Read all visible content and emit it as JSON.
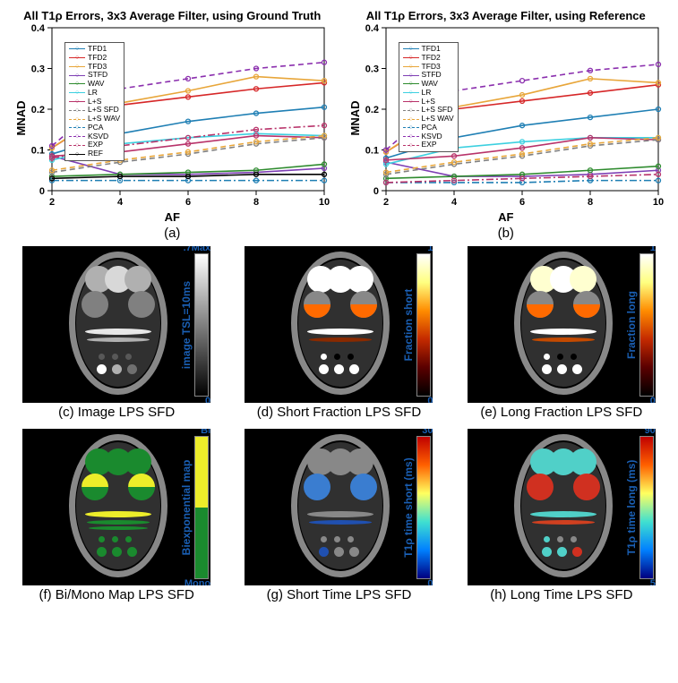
{
  "chart_a": {
    "title": "All T1ρ Errors, 3x3 Average Filter, using Ground Truth",
    "caption": "(a)",
    "xlabel": "AF",
    "ylabel": "MNAD",
    "xlim": [
      2,
      10
    ],
    "ylim": [
      0,
      0.4
    ],
    "xticks": [
      2,
      4,
      6,
      8,
      10
    ],
    "yticks": [
      0,
      0.1,
      0.2,
      0.3,
      0.4
    ],
    "title_fontsize": 13,
    "label_fontsize": 13,
    "tick_fontsize": 10,
    "background_color": "#ffffff",
    "grid": false,
    "series": [
      {
        "name": "TFD1",
        "color": "#1f7fb4",
        "style": "solid",
        "marker": "o",
        "y": [
          0.09,
          0.14,
          0.17,
          0.19,
          0.205
        ]
      },
      {
        "name": "TFD2",
        "color": "#d62728",
        "style": "solid",
        "marker": "o",
        "y": [
          0.105,
          0.21,
          0.23,
          0.25,
          0.265
        ]
      },
      {
        "name": "TFD3",
        "color": "#e8a63a",
        "style": "solid",
        "marker": "o",
        "y": [
          0.105,
          0.215,
          0.245,
          0.28,
          0.27
        ]
      },
      {
        "name": "STFD",
        "color": "#7e3fb4",
        "style": "solid",
        "marker": "o",
        "y": [
          0.085,
          0.04,
          0.04,
          0.045,
          0.055
        ]
      },
      {
        "name": "WAV",
        "color": "#2e8b2e",
        "style": "solid",
        "marker": "o",
        "y": [
          0.035,
          0.04,
          0.045,
          0.05,
          0.065
        ]
      },
      {
        "name": "LR",
        "color": "#3dd0e0",
        "style": "solid",
        "marker": "o",
        "y": [
          0.075,
          0.115,
          0.13,
          0.14,
          0.135
        ]
      },
      {
        "name": "L+S",
        "color": "#b8336a",
        "style": "solid",
        "marker": "o",
        "y": [
          0.085,
          0.095,
          0.115,
          0.135,
          0.13
        ]
      },
      {
        "name": "L+S SFD",
        "color": "#808080",
        "style": "dashed",
        "marker": "o",
        "y": [
          0.045,
          0.07,
          0.09,
          0.115,
          0.13
        ]
      },
      {
        "name": "L+S WAV",
        "color": "#e8a63a",
        "style": "dashed",
        "marker": "o",
        "y": [
          0.05,
          0.075,
          0.095,
          0.12,
          0.135
        ]
      },
      {
        "name": "PCA",
        "color": "#1f7fb4",
        "style": "dashdot",
        "marker": "o",
        "y": [
          0.025,
          0.025,
          0.025,
          0.025,
          0.025
        ]
      },
      {
        "name": "KSVD",
        "color": "#8b2fae",
        "style": "dashed",
        "marker": "o",
        "y": [
          0.11,
          0.25,
          0.275,
          0.3,
          0.315
        ]
      },
      {
        "name": "EXP",
        "color": "#b8336a",
        "style": "dashdot",
        "marker": "o",
        "y": [
          0.08,
          0.11,
          0.13,
          0.15,
          0.16
        ]
      },
      {
        "name": "REF",
        "color": "#000000",
        "style": "solid",
        "marker": "o",
        "y": [
          0.03,
          0.035,
          0.035,
          0.04,
          0.04
        ]
      }
    ]
  },
  "chart_b": {
    "title": "All T1ρ Errors, 3x3 Average Filter, using Reference",
    "caption": "(b)",
    "xlabel": "AF",
    "ylabel": "MNAD",
    "xlim": [
      2,
      10
    ],
    "ylim": [
      0,
      0.4
    ],
    "xticks": [
      2,
      4,
      6,
      8,
      10
    ],
    "yticks": [
      0,
      0.1,
      0.2,
      0.3,
      0.4
    ],
    "series": [
      {
        "name": "TFD1",
        "color": "#1f7fb4",
        "style": "solid",
        "marker": "o",
        "y": [
          0.08,
          0.13,
          0.16,
          0.18,
          0.2
        ]
      },
      {
        "name": "TFD2",
        "color": "#d62728",
        "style": "solid",
        "marker": "o",
        "y": [
          0.095,
          0.2,
          0.22,
          0.24,
          0.26
        ]
      },
      {
        "name": "TFD3",
        "color": "#e8a63a",
        "style": "solid",
        "marker": "o",
        "y": [
          0.095,
          0.205,
          0.235,
          0.275,
          0.265
        ]
      },
      {
        "name": "STFD",
        "color": "#7e3fb4",
        "style": "solid",
        "marker": "o",
        "y": [
          0.07,
          0.035,
          0.035,
          0.04,
          0.05
        ]
      },
      {
        "name": "WAV",
        "color": "#2e8b2e",
        "style": "solid",
        "marker": "o",
        "y": [
          0.03,
          0.035,
          0.04,
          0.05,
          0.06
        ]
      },
      {
        "name": "LR",
        "color": "#3dd0e0",
        "style": "solid",
        "marker": "o",
        "y": [
          0.065,
          0.105,
          0.12,
          0.13,
          0.13
        ]
      },
      {
        "name": "L+S",
        "color": "#b8336a",
        "style": "solid",
        "marker": "o",
        "y": [
          0.075,
          0.085,
          0.105,
          0.13,
          0.125
        ]
      },
      {
        "name": "L+S SFD",
        "color": "#808080",
        "style": "dashed",
        "marker": "o",
        "y": [
          0.04,
          0.065,
          0.085,
          0.11,
          0.125
        ]
      },
      {
        "name": "L+S WAV",
        "color": "#e8a63a",
        "style": "dashed",
        "marker": "o",
        "y": [
          0.045,
          0.07,
          0.09,
          0.115,
          0.13
        ]
      },
      {
        "name": "PCA",
        "color": "#1f7fb4",
        "style": "dashdot",
        "marker": "o",
        "y": [
          0.02,
          0.02,
          0.02,
          0.025,
          0.025
        ]
      },
      {
        "name": "KSVD",
        "color": "#8b2fae",
        "style": "dashed",
        "marker": "o",
        "y": [
          0.1,
          0.245,
          0.27,
          0.295,
          0.31
        ]
      },
      {
        "name": "EXP",
        "color": "#b8336a",
        "style": "dashdot",
        "marker": "o",
        "y": [
          0.02,
          0.025,
          0.03,
          0.035,
          0.04
        ]
      }
    ]
  },
  "phantoms": {
    "c": {
      "caption": "(c) Image LPS SFD",
      "cbar_label": "image TSL=10ms",
      "cbar_top": ".7Max",
      "cbar_bot": "0",
      "cbar_gradient": [
        "#000000",
        "#ffffff"
      ],
      "circles_top": [
        "#b0b0b0",
        "#d8d8d8",
        "#b0b0b0"
      ],
      "circles_mid": [
        "#808080",
        "#808080"
      ],
      "bars": [
        "#e8e8e8",
        "#b0b0b0"
      ],
      "dots": [
        "#585858",
        "#585858",
        "#585858",
        "#fff",
        "#b0b0b0",
        "#707070"
      ]
    },
    "d": {
      "caption": "(d) Short Fraction LPS SFD",
      "cbar_label": "Fraction short",
      "cbar_top": "1",
      "cbar_bot": "0",
      "cbar_gradient": [
        "#000000",
        "#5a0000",
        "#c42a00",
        "#ff8c00",
        "#ffff80",
        "#ffffff"
      ],
      "circles_top": [
        "#fff",
        "#fff",
        "#fff"
      ],
      "circles_mid_partial": {
        "left": "#ff6a00",
        "right": "#ff6a00",
        "overlay": true
      },
      "bars": [
        "#fff",
        "#8a2a00"
      ],
      "dots": [
        "#fff",
        "#000",
        "#000",
        "#fff",
        "#fff",
        "#fff"
      ]
    },
    "e": {
      "caption": "(e) Long Fraction LPS SFD",
      "cbar_label": "Fraction long",
      "cbar_top": "1",
      "cbar_bot": "0",
      "cbar_gradient": [
        "#000000",
        "#5a0000",
        "#c42a00",
        "#ff8c00",
        "#ffff80",
        "#ffffff"
      ],
      "circles_top": [
        "#ffffd0",
        "#ffffff",
        "#ffffd0"
      ],
      "circles_mid_partial": {
        "left": "#ff6a00",
        "right": "#ff6a00",
        "overlay": true
      },
      "bars": [
        "#fff",
        "#c44a00"
      ],
      "dots": [
        "#fff",
        "#000",
        "#000",
        "#fff",
        "#fff",
        "#fff"
      ]
    },
    "f": {
      "caption": "(f) Bi/Mono Map LPS SFD",
      "cbar_label": "Biexponential map",
      "cbar_top": "Bi",
      "cbar_bot": "Mono",
      "cbar_gradient_stops": [
        [
          "#1a8a2e",
          0.5
        ],
        [
          "#eded2a",
          0.5
        ]
      ],
      "circles_top": [
        "#1a8a2e",
        "#1a8a2e",
        "#1a8a2e"
      ],
      "circles_mid_half": {
        "top": "#eded2a",
        "bottom": "#1a8a2e"
      },
      "bars": [
        "#eded2a",
        "#1a8a2e",
        "#1a8a2e"
      ],
      "dots": [
        "#1a8a2e",
        "#1a8a2e",
        "#1a8a2e",
        "#1a8a2e",
        "#1a8a2e",
        "#1a8a2e"
      ]
    },
    "g": {
      "caption": "(g) Short Time LPS SFD",
      "cbar_label": "T1ρ time short (ms)",
      "cbar_top": "30",
      "cbar_bot": "0",
      "cbar_gradient": [
        "#000080",
        "#0080ff",
        "#40e0d0",
        "#ffff60",
        "#ff6000",
        "#c00000"
      ],
      "circles_top": [
        "#888",
        "#888",
        "#888"
      ],
      "circles_mid_colored": {
        "left": "#3a7dd0",
        "right": "#3a7dd0"
      },
      "bars": [
        "#888",
        "#2050b0"
      ],
      "dots": [
        "#888",
        "#888",
        "#888",
        "#2050b0",
        "#888",
        "#888"
      ]
    },
    "h": {
      "caption": "(h) Long Time LPS SFD",
      "cbar_label": "T1ρ time long (ms)",
      "cbar_top": "90",
      "cbar_bot": "5",
      "cbar_gradient": [
        "#000080",
        "#0080ff",
        "#40e0d0",
        "#ffff60",
        "#ff6000",
        "#c00000"
      ],
      "circles_top": [
        "#50d0c8",
        "#50d0c8",
        "#50d0c8"
      ],
      "circles_mid_colored": {
        "left": "#d03020",
        "right": "#d03020"
      },
      "bars": [
        "#50d0c8",
        "#d04020"
      ],
      "dots": [
        "#50d0c8",
        "#888",
        "#888",
        "#50d0c8",
        "#50d0c8",
        "#d03020"
      ]
    }
  }
}
